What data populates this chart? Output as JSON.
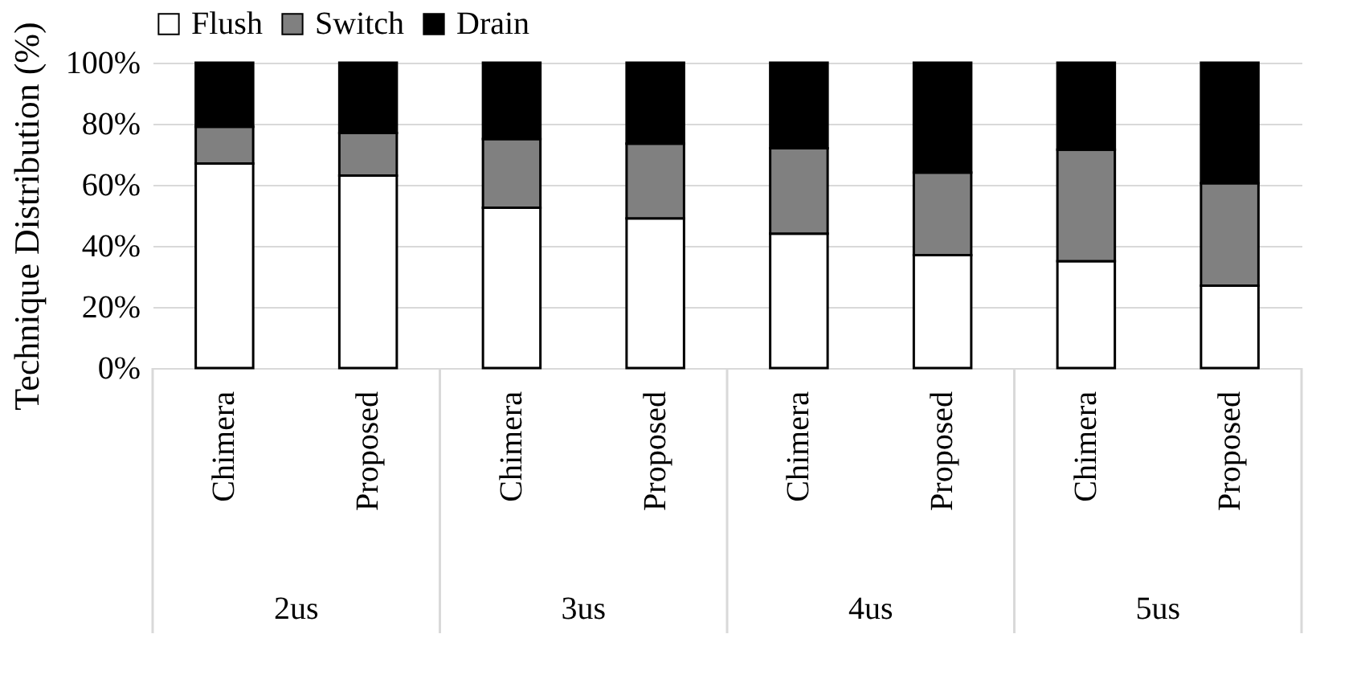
{
  "chart_data": {
    "type": "bar",
    "stacked": true,
    "ylabel": "Technique Distribution (%)",
    "categories": [
      "Chimera",
      "Proposed",
      "Chimera",
      "Proposed",
      "Chimera",
      "Proposed",
      "Chimera",
      "Proposed"
    ],
    "annotations": [
      "2us",
      "3us",
      "4us",
      "5us"
    ],
    "series": [
      {
        "name": "Flush",
        "color": "#ffffff",
        "values": [
          67,
          63,
          52.5,
          49,
          44,
          37,
          35,
          27
        ]
      },
      {
        "name": "Switch",
        "color": "#808080",
        "values": [
          12,
          14,
          22.5,
          24.5,
          28,
          27,
          36.5,
          33.5
        ]
      },
      {
        "name": "Drain",
        "color": "#000000",
        "values": [
          21,
          23,
          25,
          26.5,
          28,
          36,
          28.5,
          39.5
        ]
      }
    ],
    "ylim": [
      0,
      100
    ],
    "yticks": [
      {
        "value": 0,
        "label": "0%"
      },
      {
        "value": 20,
        "label": "20%"
      },
      {
        "value": 40,
        "label": "40%"
      },
      {
        "value": 60,
        "label": "60%"
      },
      {
        "value": 80,
        "label": "80%"
      },
      {
        "value": 100,
        "label": "100%"
      }
    ],
    "grid": "y",
    "legend": "top"
  }
}
